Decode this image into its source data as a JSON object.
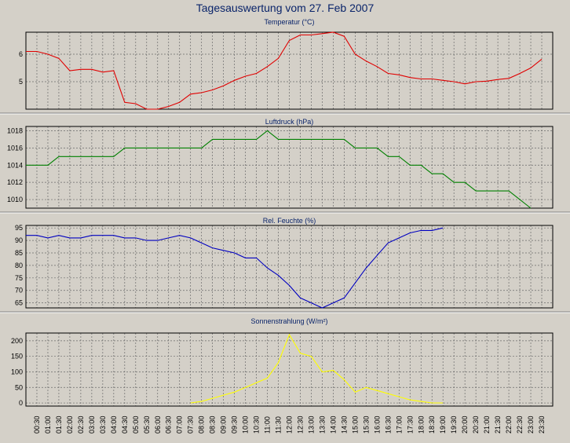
{
  "title": "Tagesauswertung vom 27. Feb 2007",
  "chart_data": [
    {
      "type": "line",
      "title": "Temperatur (°C)",
      "ylim": [
        4,
        6.8
      ],
      "yticks": [
        5,
        6
      ],
      "color": "#e00000",
      "x": [
        "00:00",
        "00:30",
        "01:00",
        "01:30",
        "02:00",
        "02:30",
        "03:00",
        "03:30",
        "04:00",
        "04:30",
        "05:00",
        "05:30",
        "06:00",
        "06:30",
        "07:00",
        "07:30",
        "08:00",
        "08:30",
        "09:00",
        "09:30",
        "10:00",
        "10:30",
        "11:00",
        "11:30",
        "12:00",
        "12:30",
        "13:00",
        "13:30",
        "14:00",
        "14:30",
        "15:00",
        "15:30",
        "16:00",
        "16:30",
        "17:00",
        "17:30",
        "18:00",
        "18:30",
        "19:00",
        "19:30",
        "20:00",
        "20:30",
        "21:00",
        "21:30",
        "22:00",
        "22:30",
        "23:00",
        "23:30"
      ],
      "values": [
        6.1,
        6.1,
        6.0,
        5.85,
        5.4,
        5.45,
        5.45,
        5.35,
        5.4,
        4.25,
        4.2,
        4.0,
        3.95,
        4.1,
        4.25,
        4.55,
        4.6,
        4.7,
        4.85,
        5.05,
        5.2,
        5.3,
        5.55,
        5.85,
        6.5,
        6.7,
        6.7,
        6.75,
        6.8,
        6.65,
        6.0,
        5.75,
        5.55,
        5.3,
        5.25,
        5.15,
        5.1,
        5.1,
        5.05,
        5.0,
        4.92,
        5.0,
        5.02,
        5.08,
        5.12,
        5.3,
        5.5,
        5.82
      ]
    },
    {
      "type": "line",
      "title": "Luftdruck (hPa)",
      "ylim": [
        1009,
        1018.5
      ],
      "yticks": [
        1010,
        1012,
        1014,
        1016,
        1018
      ],
      "color": "#008000",
      "x": [
        "00:00",
        "00:30",
        "01:00",
        "01:30",
        "02:00",
        "02:30",
        "03:00",
        "03:30",
        "04:00",
        "04:30",
        "05:00",
        "05:30",
        "06:00",
        "06:30",
        "07:00",
        "07:30",
        "08:00",
        "08:30",
        "09:00",
        "09:30",
        "10:00",
        "10:30",
        "11:00",
        "11:30",
        "12:00",
        "12:30",
        "13:00",
        "13:30",
        "14:00",
        "14:30",
        "15:00",
        "15:30",
        "16:00",
        "16:30",
        "17:00",
        "17:30",
        "18:00",
        "18:30",
        "19:00",
        "19:30",
        "20:00",
        "20:30",
        "21:00",
        "21:30",
        "22:00",
        "22:30",
        "23:00"
      ],
      "values": [
        1014,
        1014,
        1014,
        1015,
        1015,
        1015,
        1015,
        1015,
        1015,
        1016,
        1016,
        1016,
        1016,
        1016,
        1016,
        1016,
        1016,
        1017,
        1017,
        1017,
        1017,
        1017,
        1018,
        1017,
        1017,
        1017,
        1017,
        1017,
        1017,
        1017,
        1016,
        1016,
        1016,
        1015,
        1015,
        1014,
        1014,
        1013,
        1013,
        1012,
        1012,
        1011,
        1011,
        1011,
        1011,
        1010,
        1009
      ]
    },
    {
      "type": "line",
      "title": "Rel. Feuchte (%)",
      "ylim": [
        63,
        96
      ],
      "yticks": [
        65,
        70,
        75,
        80,
        85,
        90,
        95
      ],
      "color": "#0000c0",
      "x": [
        "00:00",
        "00:30",
        "01:00",
        "01:30",
        "02:00",
        "02:30",
        "03:00",
        "03:30",
        "04:00",
        "04:30",
        "05:00",
        "05:30",
        "06:00",
        "06:30",
        "07:00",
        "07:30",
        "08:00",
        "08:30",
        "09:00",
        "09:30",
        "10:00",
        "10:30",
        "11:00",
        "11:30",
        "12:00",
        "12:30",
        "13:00",
        "13:30",
        "14:00",
        "14:30",
        "15:00",
        "15:30",
        "16:00",
        "16:30",
        "17:00",
        "17:30",
        "18:00",
        "18:30",
        "19:00"
      ],
      "values": [
        92,
        92,
        91,
        92,
        91,
        91,
        92,
        92,
        92,
        91,
        91,
        90,
        90,
        91,
        92,
        91,
        89,
        87,
        86,
        85,
        83,
        83,
        79,
        76,
        72,
        67,
        65,
        63,
        65,
        67,
        73,
        79,
        84,
        89,
        91,
        93,
        94,
        94,
        95
      ]
    },
    {
      "type": "line",
      "title": "Sonnenstrahlung (W/m²)",
      "ylim": [
        -10,
        225
      ],
      "yticks": [
        0,
        50,
        100,
        150,
        200
      ],
      "color": "#ffff00",
      "x": [
        "07:30",
        "08:00",
        "08:30",
        "09:00",
        "09:30",
        "10:00",
        "10:30",
        "11:00",
        "11:30",
        "12:00",
        "12:30",
        "13:00",
        "13:30",
        "14:00",
        "14:30",
        "15:00",
        "15:30",
        "16:00",
        "16:30",
        "17:00",
        "17:30",
        "18:00",
        "18:30",
        "19:00"
      ],
      "values": [
        0,
        5,
        15,
        25,
        35,
        50,
        65,
        80,
        130,
        220,
        160,
        150,
        100,
        105,
        75,
        35,
        50,
        40,
        30,
        20,
        10,
        5,
        0,
        0
      ]
    }
  ],
  "x_tick_labels": [
    "00:30",
    "01:00",
    "01:30",
    "02:00",
    "02:30",
    "03:00",
    "03:30",
    "04:00",
    "04:30",
    "05:00",
    "05:30",
    "06:00",
    "06:30",
    "07:00",
    "07:30",
    "08:00",
    "08:30",
    "09:00",
    "09:30",
    "10:00",
    "10:30",
    "11:00",
    "11:30",
    "12:00",
    "12:30",
    "13:00",
    "13:30",
    "14:00",
    "14:30",
    "15:00",
    "15:30",
    "16:00",
    "16:30",
    "17:00",
    "17:30",
    "18:00",
    "18:30",
    "19:00",
    "19:30",
    "20:00",
    "20:30",
    "21:00",
    "21:30",
    "22:00",
    "22:30",
    "23:00",
    "23:30"
  ]
}
